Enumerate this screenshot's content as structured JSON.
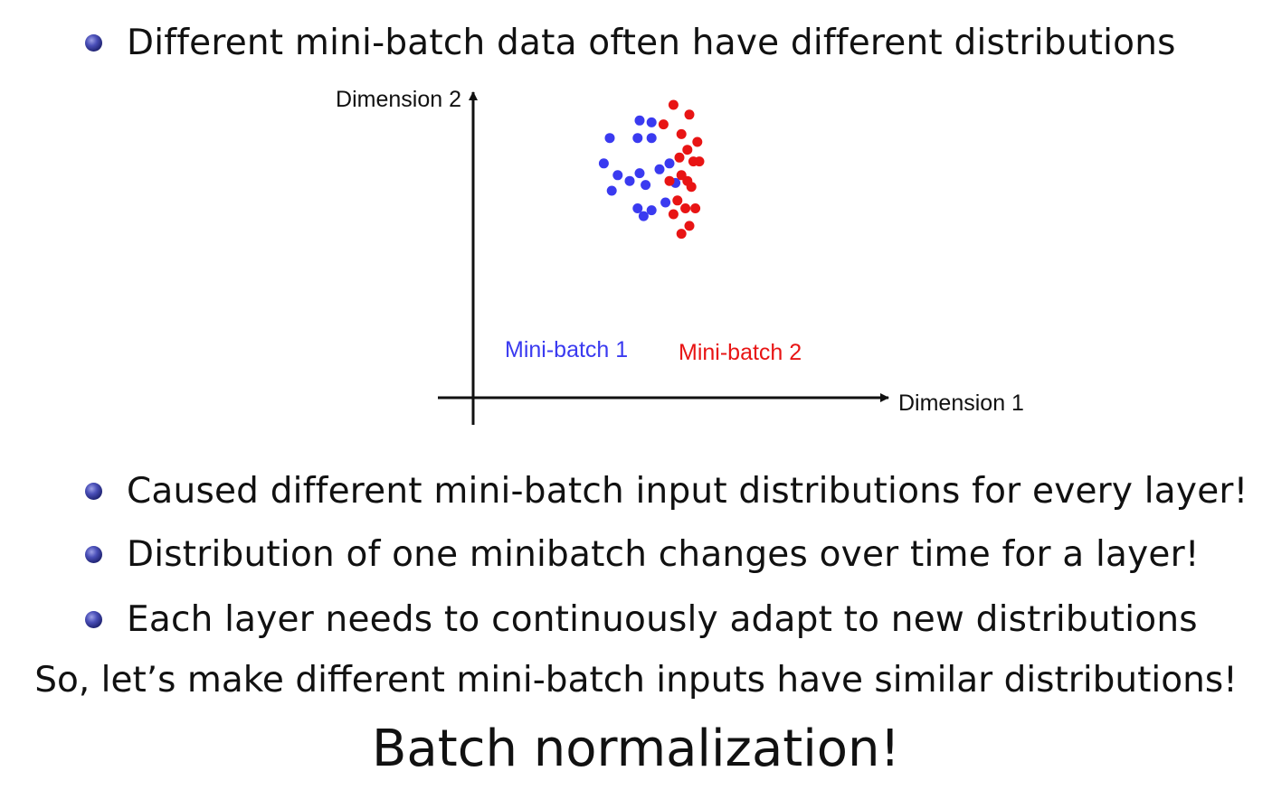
{
  "bullets_top": [
    {
      "text": "Different mini-batch data often have different distributions"
    }
  ],
  "chart_data": {
    "type": "scatter",
    "xlabel": "Dimension 1",
    "ylabel": "Dimension 2",
    "xlim": [
      0,
      100
    ],
    "ylim": [
      0,
      100
    ],
    "grid": false,
    "series": [
      {
        "name": "Mini-batch 1",
        "color": "#3a3af0",
        "points": [
          [
            35,
            92
          ],
          [
            41,
            91
          ],
          [
            20,
            83
          ],
          [
            34,
            83
          ],
          [
            41,
            83
          ],
          [
            17,
            70
          ],
          [
            24,
            64
          ],
          [
            21,
            56
          ],
          [
            30,
            61
          ],
          [
            35,
            65
          ],
          [
            38,
            59
          ],
          [
            45,
            67
          ],
          [
            50,
            70
          ],
          [
            48,
            50
          ],
          [
            41,
            46
          ],
          [
            34,
            47
          ],
          [
            37,
            43
          ],
          [
            53,
            60
          ]
        ]
      },
      {
        "name": "Mini-batch 2",
        "color": "#e81414",
        "points": [
          [
            52,
            100
          ],
          [
            60,
            95
          ],
          [
            47,
            90
          ],
          [
            56,
            85
          ],
          [
            64,
            81
          ],
          [
            59,
            77
          ],
          [
            55,
            73
          ],
          [
            62,
            71
          ],
          [
            65,
            71
          ],
          [
            56,
            64
          ],
          [
            59,
            61
          ],
          [
            50,
            61
          ],
          [
            61,
            58
          ],
          [
            54,
            51
          ],
          [
            58,
            47
          ],
          [
            63,
            47
          ],
          [
            52,
            44
          ],
          [
            60,
            38
          ],
          [
            56,
            34
          ]
        ]
      }
    ]
  },
  "bullets_bottom": [
    {
      "text": "Caused different mini-batch input distributions for every layer!"
    },
    {
      "text": "Distribution of one minibatch changes over time for a layer!"
    },
    {
      "text": "Each layer needs to continuously adapt to new distributions"
    }
  ],
  "conclusion": "So, let’s make different mini-batch inputs have similar distributions!",
  "headline": "Batch normalization!"
}
